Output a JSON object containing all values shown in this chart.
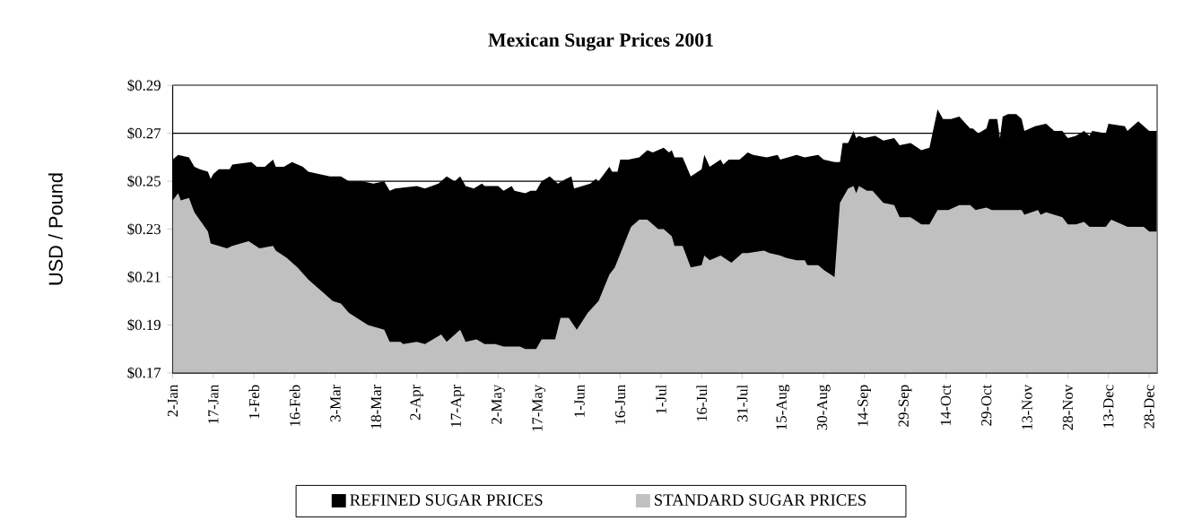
{
  "chart_data": {
    "type": "area",
    "title": "Mexican Sugar Prices 2001",
    "ylabel": "USD / Pound",
    "xlim": [
      "2001-01-02",
      "2001-12-31"
    ],
    "xticks": [
      {
        "value": "2001-01-02",
        "label": "2-Jan"
      },
      {
        "value": "2001-01-17",
        "label": "17-Jan"
      },
      {
        "value": "2001-02-01",
        "label": "1-Feb"
      },
      {
        "value": "2001-02-16",
        "label": "16-Feb"
      },
      {
        "value": "2001-03-03",
        "label": "3-Mar"
      },
      {
        "value": "2001-03-18",
        "label": "18-Mar"
      },
      {
        "value": "2001-04-02",
        "label": "2-Apr"
      },
      {
        "value": "2001-04-17",
        "label": "17-Apr"
      },
      {
        "value": "2001-05-02",
        "label": "2-May"
      },
      {
        "value": "2001-05-17",
        "label": "17-May"
      },
      {
        "value": "2001-06-01",
        "label": "1-Jun"
      },
      {
        "value": "2001-06-16",
        "label": "16-Jun"
      },
      {
        "value": "2001-07-01",
        "label": "1-Jul"
      },
      {
        "value": "2001-07-16",
        "label": "16-Jul"
      },
      {
        "value": "2001-07-31",
        "label": "31-Jul"
      },
      {
        "value": "2001-08-15",
        "label": "15-Aug"
      },
      {
        "value": "2001-08-30",
        "label": "30-Aug"
      },
      {
        "value": "2001-09-14",
        "label": "14-Sep"
      },
      {
        "value": "2001-09-29",
        "label": "29-Sep"
      },
      {
        "value": "2001-10-14",
        "label": "14-Oct"
      },
      {
        "value": "2001-10-29",
        "label": "29-Oct"
      },
      {
        "value": "2001-11-13",
        "label": "13-Nov"
      },
      {
        "value": "2001-11-28",
        "label": "28-Nov"
      },
      {
        "value": "2001-12-13",
        "label": "13-Dec"
      },
      {
        "value": "2001-12-28",
        "label": "28-Dec"
      }
    ],
    "ylim": [
      0.17,
      0.29
    ],
    "yticks": [
      {
        "value": 0.17,
        "label": "$0.17"
      },
      {
        "value": 0.19,
        "label": "$0.19"
      },
      {
        "value": 0.21,
        "label": "$0.21"
      },
      {
        "value": 0.23,
        "label": "$0.23"
      },
      {
        "value": 0.25,
        "label": "$0.25"
      },
      {
        "value": 0.27,
        "label": "$0.27"
      },
      {
        "value": 0.29,
        "label": "$0.29"
      }
    ],
    "grid": "y",
    "legend": "bottom",
    "series": [
      {
        "name": "REFINED SUGAR PRICES",
        "color": "#000000",
        "x": [
          "2001-01-02",
          "2001-01-04",
          "2001-01-08",
          "2001-01-10",
          "2001-01-12",
          "2001-01-15",
          "2001-01-16",
          "2001-01-17",
          "2001-01-19",
          "2001-01-23",
          "2001-01-24",
          "2001-01-31",
          "2001-02-02",
          "2001-02-05",
          "2001-02-08",
          "2001-02-09",
          "2001-02-12",
          "2001-02-15",
          "2001-02-19",
          "2001-02-21",
          "2001-03-01",
          "2001-03-05",
          "2001-03-08",
          "2001-03-13",
          "2001-03-17",
          "2001-03-21",
          "2001-03-23",
          "2001-03-25",
          "2001-04-02",
          "2001-04-05",
          "2001-04-10",
          "2001-04-13",
          "2001-04-16",
          "2001-04-18",
          "2001-04-20",
          "2001-04-23",
          "2001-04-26",
          "2001-04-27",
          "2001-05-02",
          "2001-05-04",
          "2001-05-07",
          "2001-05-08",
          "2001-05-12",
          "2001-05-14",
          "2001-05-16",
          "2001-05-18",
          "2001-05-21",
          "2001-05-24",
          "2001-05-27",
          "2001-05-29",
          "2001-05-30",
          "2001-06-05",
          "2001-06-07",
          "2001-06-08",
          "2001-06-12",
          "2001-06-13",
          "2001-06-15",
          "2001-06-16",
          "2001-06-19",
          "2001-06-23",
          "2001-06-26",
          "2001-06-28",
          "2001-07-02",
          "2001-07-04",
          "2001-07-05",
          "2001-07-06",
          "2001-07-09",
          "2001-07-12",
          "2001-07-16",
          "2001-07-17",
          "2001-07-19",
          "2001-07-23",
          "2001-07-24",
          "2001-07-26",
          "2001-07-30",
          "2001-08-02",
          "2001-08-04",
          "2001-08-09",
          "2001-08-13",
          "2001-08-14",
          "2001-08-20",
          "2001-08-23",
          "2001-08-28",
          "2001-08-30",
          "2001-09-03",
          "2001-09-05",
          "2001-09-06",
          "2001-09-08",
          "2001-09-10",
          "2001-09-11",
          "2001-09-12",
          "2001-09-14",
          "2001-09-18",
          "2001-09-21",
          "2001-09-25",
          "2001-09-27",
          "2001-10-01",
          "2001-10-05",
          "2001-10-08",
          "2001-10-11",
          "2001-10-13",
          "2001-10-16",
          "2001-10-19",
          "2001-10-23",
          "2001-10-24",
          "2001-10-26",
          "2001-10-29",
          "2001-10-30",
          "2001-11-02",
          "2001-11-03",
          "2001-11-04",
          "2001-11-06",
          "2001-11-09",
          "2001-11-11",
          "2001-11-12",
          "2001-11-16",
          "2001-11-20",
          "2001-11-23",
          "2001-11-26",
          "2001-11-28",
          "2001-12-01",
          "2001-12-04",
          "2001-12-06",
          "2001-12-07",
          "2001-12-12",
          "2001-12-13",
          "2001-12-19",
          "2001-12-20",
          "2001-12-22",
          "2001-12-24",
          "2001-12-28",
          "2001-12-31"
        ],
        "values": [
          0.259,
          0.261,
          0.26,
          0.256,
          0.255,
          0.254,
          0.251,
          0.253,
          0.255,
          0.255,
          0.257,
          0.258,
          0.256,
          0.256,
          0.259,
          0.256,
          0.256,
          0.258,
          0.256,
          0.254,
          0.252,
          0.252,
          0.25,
          0.25,
          0.249,
          0.25,
          0.246,
          0.247,
          0.248,
          0.247,
          0.249,
          0.252,
          0.25,
          0.252,
          0.248,
          0.247,
          0.249,
          0.248,
          0.248,
          0.246,
          0.248,
          0.246,
          0.245,
          0.246,
          0.246,
          0.25,
          0.252,
          0.249,
          0.251,
          0.252,
          0.247,
          0.249,
          0.251,
          0.25,
          0.256,
          0.254,
          0.254,
          0.259,
          0.259,
          0.26,
          0.263,
          0.262,
          0.264,
          0.262,
          0.263,
          0.26,
          0.26,
          0.252,
          0.255,
          0.261,
          0.256,
          0.259,
          0.257,
          0.259,
          0.259,
          0.262,
          0.261,
          0.26,
          0.261,
          0.259,
          0.261,
          0.26,
          0.261,
          0.259,
          0.258,
          0.258,
          0.266,
          0.266,
          0.271,
          0.268,
          0.269,
          0.268,
          0.269,
          0.267,
          0.268,
          0.265,
          0.266,
          0.263,
          0.264,
          0.28,
          0.276,
          0.276,
          0.277,
          0.272,
          0.272,
          0.27,
          0.272,
          0.276,
          0.276,
          0.268,
          0.277,
          0.278,
          0.278,
          0.276,
          0.271,
          0.273,
          0.274,
          0.271,
          0.271,
          0.268,
          0.269,
          0.271,
          0.269,
          0.271,
          0.27,
          0.274,
          0.273,
          0.271,
          0.273,
          0.275,
          0.271,
          0.271
        ]
      },
      {
        "name": "STANDARD SUGAR PRICES",
        "color": "#c0c0c0",
        "x": [
          "2001-01-02",
          "2001-01-04",
          "2001-01-05",
          "2001-01-08",
          "2001-01-10",
          "2001-01-15",
          "2001-01-16",
          "2001-01-22",
          "2001-01-24",
          "2001-01-30",
          "2001-02-03",
          "2001-02-08",
          "2001-02-09",
          "2001-02-13",
          "2001-02-17",
          "2001-02-21",
          "2001-02-26",
          "2001-03-02",
          "2001-03-05",
          "2001-03-08",
          "2001-03-15",
          "2001-03-21",
          "2001-03-23",
          "2001-03-27",
          "2001-03-28",
          "2001-04-02",
          "2001-04-05",
          "2001-04-11",
          "2001-04-13",
          "2001-04-18",
          "2001-04-20",
          "2001-04-24",
          "2001-04-27",
          "2001-05-01",
          "2001-05-04",
          "2001-05-10",
          "2001-05-12",
          "2001-05-16",
          "2001-05-18",
          "2001-05-23",
          "2001-05-25",
          "2001-05-28",
          "2001-05-31",
          "2001-06-04",
          "2001-06-08",
          "2001-06-12",
          "2001-06-14",
          "2001-06-20",
          "2001-06-23",
          "2001-06-26",
          "2001-06-30",
          "2001-07-02",
          "2001-07-05",
          "2001-07-06",
          "2001-07-09",
          "2001-07-12",
          "2001-07-16",
          "2001-07-17",
          "2001-07-19",
          "2001-07-23",
          "2001-07-27",
          "2001-07-31",
          "2001-08-02",
          "2001-08-08",
          "2001-08-10",
          "2001-08-14",
          "2001-08-16",
          "2001-08-20",
          "2001-08-23",
          "2001-08-24",
          "2001-08-28",
          "2001-08-30",
          "2001-09-03",
          "2001-09-05",
          "2001-09-08",
          "2001-09-10",
          "2001-09-11",
          "2001-09-12",
          "2001-09-15",
          "2001-09-17",
          "2001-09-21",
          "2001-09-25",
          "2001-09-27",
          "2001-10-01",
          "2001-10-05",
          "2001-10-08",
          "2001-10-11",
          "2001-10-15",
          "2001-10-17",
          "2001-10-19",
          "2001-10-23",
          "2001-10-25",
          "2001-10-29",
          "2001-10-31",
          "2001-11-03",
          "2001-11-11",
          "2001-11-12",
          "2001-11-17",
          "2001-11-18",
          "2001-11-20",
          "2001-11-26",
          "2001-11-28",
          "2001-12-01",
          "2001-12-04",
          "2001-12-06",
          "2001-12-12",
          "2001-12-14",
          "2001-12-18",
          "2001-12-20",
          "2001-12-26",
          "2001-12-28",
          "2001-12-31"
        ],
        "values": [
          0.242,
          0.245,
          0.242,
          0.243,
          0.237,
          0.229,
          0.224,
          0.222,
          0.223,
          0.225,
          0.222,
          0.223,
          0.221,
          0.218,
          0.214,
          0.209,
          0.204,
          0.2,
          0.199,
          0.195,
          0.19,
          0.188,
          0.183,
          0.183,
          0.182,
          0.183,
          0.182,
          0.186,
          0.183,
          0.188,
          0.183,
          0.184,
          0.182,
          0.182,
          0.181,
          0.181,
          0.18,
          0.18,
          0.184,
          0.184,
          0.193,
          0.193,
          0.188,
          0.195,
          0.2,
          0.211,
          0.214,
          0.231,
          0.234,
          0.234,
          0.23,
          0.23,
          0.227,
          0.223,
          0.223,
          0.214,
          0.215,
          0.219,
          0.217,
          0.219,
          0.216,
          0.22,
          0.22,
          0.221,
          0.22,
          0.219,
          0.218,
          0.217,
          0.217,
          0.215,
          0.215,
          0.213,
          0.21,
          0.241,
          0.247,
          0.248,
          0.245,
          0.248,
          0.246,
          0.246,
          0.241,
          0.24,
          0.235,
          0.235,
          0.232,
          0.232,
          0.238,
          0.238,
          0.239,
          0.24,
          0.24,
          0.238,
          0.239,
          0.238,
          0.238,
          0.238,
          0.236,
          0.238,
          0.236,
          0.237,
          0.235,
          0.232,
          0.232,
          0.233,
          0.231,
          0.231,
          0.234,
          0.232,
          0.231,
          0.231,
          0.229,
          0.229
        ]
      }
    ]
  }
}
